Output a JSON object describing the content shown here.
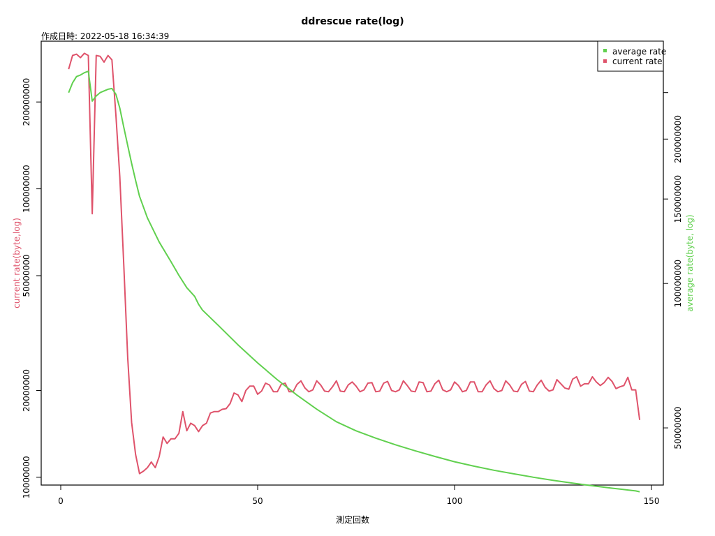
{
  "chart_data": {
    "type": "line",
    "title": "ddrescue rate(log)",
    "subtitle": "作成日時: 2022-05-18 16:34:39",
    "xlabel": "測定回数",
    "ylabel_left": "current rate(byte,log)",
    "ylabel_right": "average rate(byte, log)",
    "xlim": [
      0,
      150
    ],
    "x_ticks": [
      0,
      50,
      100,
      150
    ],
    "left_axis": {
      "scale": "log",
      "ticks": [
        10000000,
        20000000,
        50000000,
        100000000,
        200000000
      ],
      "tick_labels": [
        "10000000",
        "20000000",
        "50000000",
        "100000000",
        "200000000"
      ],
      "ylim": [
        9400000,
        325000000
      ]
    },
    "right_axis": {
      "scale": "log",
      "ticks": [
        50000000,
        100000000,
        150000000,
        200000000
      ],
      "tick_labels": [
        "50000000",
        "100000000",
        "150000000",
        "200000000"
      ],
      "ylim": [
        38000000,
        320000000
      ]
    },
    "legend_position": "top-right",
    "series": [
      {
        "name": "current rate",
        "color": "#DF536B",
        "axis": "left",
        "x": [
          2,
          3,
          4,
          5,
          6,
          7,
          8,
          9,
          10,
          11,
          12,
          13,
          14,
          15,
          16,
          17,
          18,
          19,
          20,
          21,
          22,
          23,
          24,
          25,
          26,
          27,
          28,
          29,
          30,
          31,
          32,
          33,
          34,
          35,
          36,
          37,
          38,
          39,
          40,
          41,
          42,
          43,
          44,
          45,
          46,
          47,
          48,
          49,
          50,
          51,
          52,
          53,
          54,
          55,
          56,
          57,
          58,
          59,
          60,
          61,
          62,
          63,
          64,
          65,
          66,
          67,
          68,
          69,
          70,
          71,
          72,
          73,
          74,
          75,
          76,
          77,
          78,
          79,
          80,
          81,
          82,
          83,
          84,
          85,
          86,
          87,
          88,
          89,
          90,
          91,
          92,
          93,
          94,
          95,
          96,
          97,
          98,
          99,
          100,
          101,
          102,
          103,
          104,
          105,
          106,
          107,
          108,
          109,
          110,
          111,
          112,
          113,
          114,
          115,
          116,
          117,
          118,
          119,
          120,
          121,
          122,
          123,
          124,
          125,
          126,
          127,
          128,
          129,
          130,
          131,
          132,
          133,
          134,
          135,
          136,
          137,
          138,
          139,
          140,
          141,
          142,
          143,
          144,
          145,
          146,
          147
        ],
        "values": [
          260000000,
          290000000,
          293000000,
          285000000,
          295000000,
          290000000,
          82000000,
          290000000,
          288000000,
          275000000,
          290000000,
          280000000,
          180000000,
          110000000,
          55000000,
          26000000,
          15500000,
          12000000,
          10300000,
          10500000,
          10800000,
          11300000,
          10800000,
          11800000,
          13800000,
          13100000,
          13600000,
          13600000,
          14200000,
          16900000,
          14500000,
          15400000,
          15100000,
          14400000,
          15100000,
          15400000,
          16700000,
          16900000,
          16900000,
          17200000,
          17300000,
          18000000,
          19600000,
          19300000,
          18300000,
          20000000,
          20700000,
          20700000,
          19400000,
          19900000,
          21200000,
          20900000,
          19800000,
          19800000,
          21000000,
          21200000,
          19800000,
          19800000,
          21000000,
          21600000,
          20400000,
          19800000,
          20100000,
          21600000,
          20900000,
          19900000,
          19800000,
          20600000,
          21600000,
          19900000,
          19800000,
          20900000,
          21400000,
          20700000,
          19800000,
          20100000,
          21200000,
          21300000,
          19800000,
          19900000,
          21200000,
          21500000,
          20000000,
          19800000,
          20100000,
          21600000,
          20800000,
          19900000,
          19800000,
          21400000,
          21300000,
          19800000,
          19900000,
          21100000,
          21700000,
          20100000,
          19800000,
          20100000,
          21400000,
          20800000,
          19800000,
          20000000,
          21400000,
          21400000,
          19800000,
          19800000,
          20900000,
          21600000,
          20300000,
          19800000,
          20000000,
          21600000,
          20900000,
          19900000,
          19800000,
          21000000,
          21500000,
          19900000,
          19800000,
          20900000,
          21700000,
          20500000,
          19900000,
          20100000,
          21800000,
          21100000,
          20400000,
          20200000,
          21900000,
          22300000,
          20700000,
          21100000,
          21100000,
          22300000,
          21400000,
          20800000,
          21300000,
          22200000,
          21500000,
          20300000,
          20600000,
          20800000,
          22200000,
          20100000,
          20100000,
          15800000
        ]
      },
      {
        "name": "average rate",
        "color": "#61D04F",
        "axis": "right",
        "x": [
          2,
          3,
          4,
          5,
          6,
          7,
          8,
          9,
          10,
          11,
          12,
          13,
          14,
          15,
          16,
          17,
          18,
          19,
          20,
          22,
          25,
          28,
          30,
          32,
          34,
          35,
          36,
          40,
          45,
          50,
          55,
          60,
          65,
          70,
          75,
          80,
          85,
          90,
          95,
          100,
          105,
          110,
          115,
          120,
          125,
          130,
          135,
          140,
          145,
          146,
          147
        ],
        "values": [
          250000000,
          262000000,
          270000000,
          272000000,
          275000000,
          277000000,
          240000000,
          246000000,
          250000000,
          252000000,
          254000000,
          255000000,
          248000000,
          232000000,
          212000000,
          194000000,
          178000000,
          164000000,
          152000000,
          137000000,
          122000000,
          111000000,
          104000000,
          98000000,
          94000000,
          90500000,
          88000000,
          81800000,
          74500000,
          68300000,
          63000000,
          58500000,
          54700000,
          51500000,
          49300000,
          47600000,
          46100000,
          44800000,
          43600000,
          42500000,
          41600000,
          40800000,
          40100000,
          39450000,
          38880000,
          38350000,
          37870000,
          37430000,
          37030000,
          36950000,
          36800000
        ]
      }
    ]
  },
  "legend": {
    "items": [
      {
        "label": "average rate",
        "color": "#61D04F"
      },
      {
        "label": "current rate",
        "color": "#DF536B"
      }
    ]
  }
}
